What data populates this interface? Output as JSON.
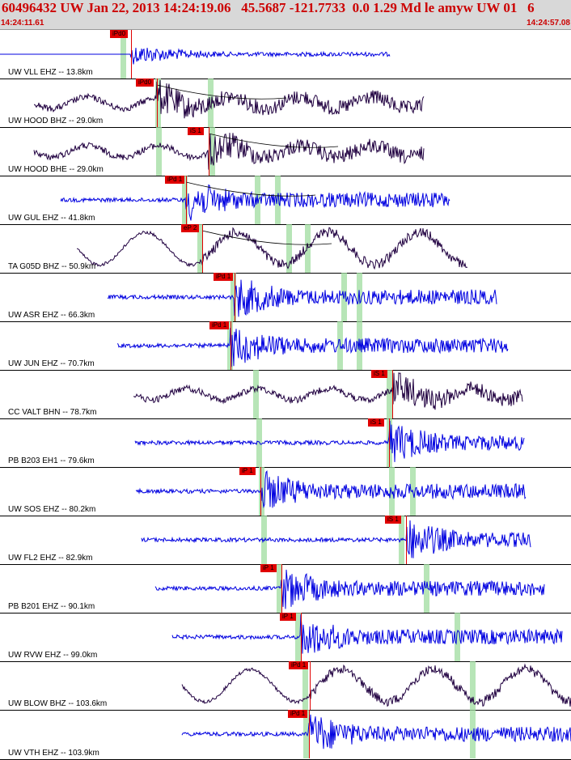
{
  "header": {
    "title": "60496432 UW Jan 22, 2013 14:24:19.06   45.5687 -121.7733  0.0 1.29 Md le amyw UW 01   6",
    "time_start": "14:24:11.61",
    "time_end": "14:24:57.08"
  },
  "colors": {
    "short_period": "#0000e0",
    "broadband": "#200040",
    "pick": "#e00000",
    "window": "#9fdc9f",
    "header_bg": "#d8d8d8",
    "header_text": "#cc0000"
  },
  "traces": [
    {
      "label": "UW VLL EHZ -- 13.8km",
      "pick": "iPd0",
      "color": "blue"
    },
    {
      "label": "UW HOOD BHZ -- 29.0km",
      "pick": "iPd0",
      "color": "dark"
    },
    {
      "label": "UW HOOD BHE -- 29.0km",
      "pick": "iS 1",
      "color": "dark"
    },
    {
      "label": "UW GUL EHZ -- 41.8km",
      "pick": "iPd 1",
      "color": "blue"
    },
    {
      "label": "TA G05D BHZ -- 50.9km",
      "pick": "eP 2",
      "color": "dark"
    },
    {
      "label": "UW ASR EHZ -- 66.3km",
      "pick": "iPd 1",
      "color": "blue"
    },
    {
      "label": "UW JUN EHZ -- 70.7km",
      "pick": "iPd 1",
      "color": "blue"
    },
    {
      "label": "CC VALT BHN -- 78.7km",
      "pick": "iS 1",
      "color": "dark"
    },
    {
      "label": "PB B203 EH1 -- 79.6km",
      "pick": "iS 1",
      "color": "blue"
    },
    {
      "label": "UW SOS EHZ -- 80.2km",
      "pick": "iP 1",
      "color": "blue"
    },
    {
      "label": "UW FL2 EHZ -- 82.9km",
      "pick": "iS 1",
      "color": "blue"
    },
    {
      "label": "PB B201 EHZ -- 90.1km",
      "pick": "iP 1",
      "color": "blue"
    },
    {
      "label": "UW RVW EHZ -- 99.0km",
      "pick": "iP 1",
      "color": "blue"
    },
    {
      "label": "UW BLOW BHZ -- 103.6km",
      "pick": "iPd 1",
      "color": "dark"
    },
    {
      "label": "UW VTH EHZ -- 103.9km",
      "pick": "iPd 1",
      "color": "blue"
    }
  ]
}
